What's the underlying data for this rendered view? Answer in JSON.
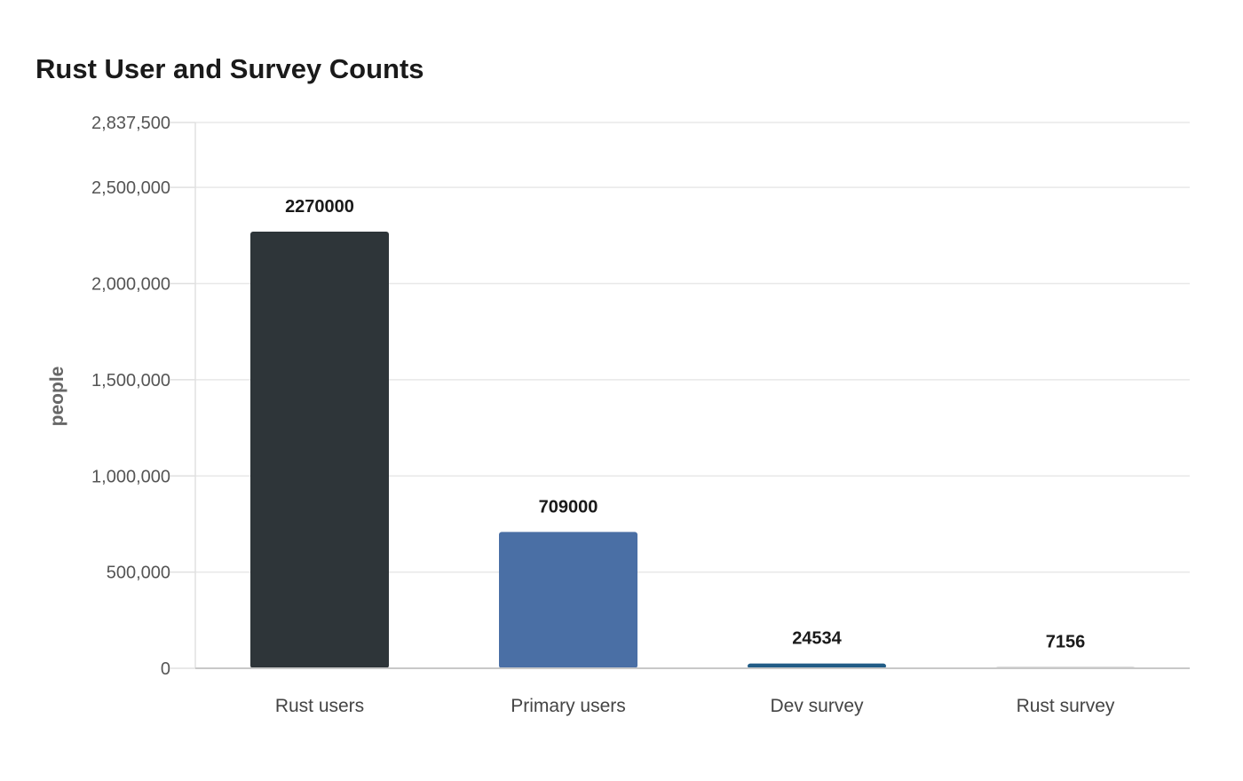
{
  "chart_data": {
    "type": "bar",
    "title": "Rust User and Survey Counts",
    "xlabel": "",
    "ylabel": "people",
    "categories": [
      "Rust users",
      "Primary users",
      "Dev survey",
      "Rust survey"
    ],
    "values": [
      2270000,
      709000,
      24534,
      7156
    ],
    "data_labels": [
      "2270000",
      "709000",
      "24534",
      "7156"
    ],
    "colors": [
      "#2e3539",
      "#4a6fa5",
      "#215c86",
      "#b5b5b5"
    ],
    "ylim": [
      0,
      2837500
    ],
    "y_ticks": [
      0,
      500000,
      1000000,
      1500000,
      2000000,
      2500000,
      2837500
    ],
    "y_tick_labels": [
      "0",
      "500,000",
      "1,000,000",
      "1,500,000",
      "2,000,000",
      "2,500,000",
      "2,837,500"
    ],
    "grid": true,
    "legend": "none"
  }
}
